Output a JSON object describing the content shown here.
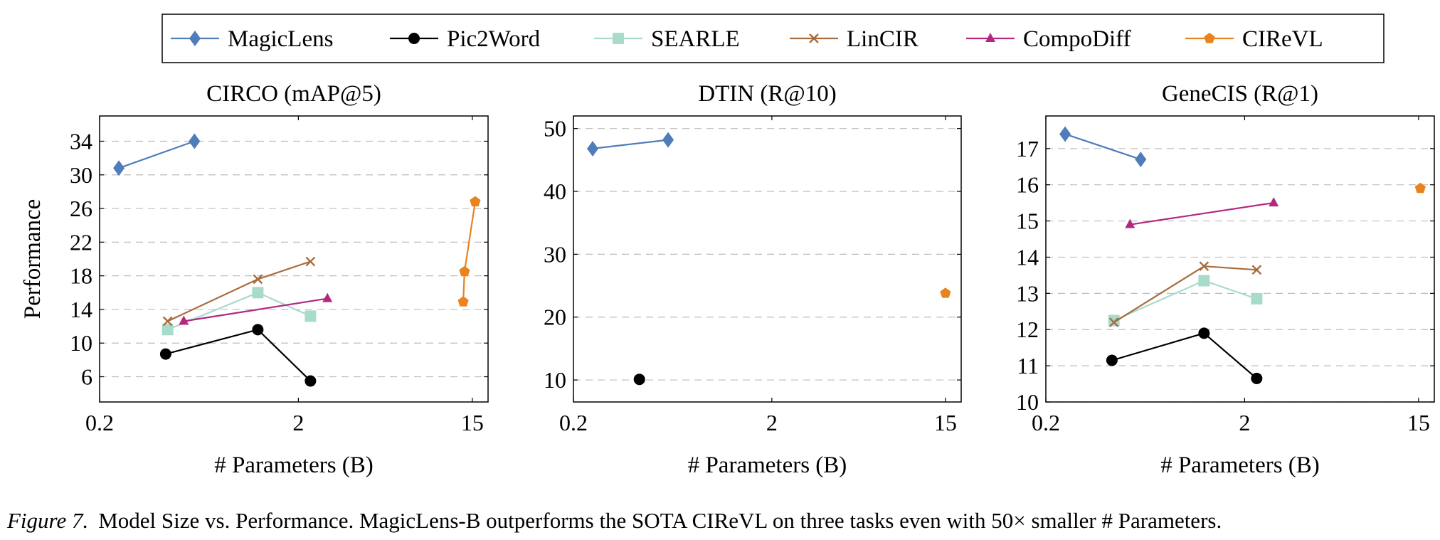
{
  "legend": [
    {
      "name": "MagicLens",
      "color": "#4f7cba",
      "marker": "diamond"
    },
    {
      "name": "Pic2Word",
      "color": "#000000",
      "marker": "circle"
    },
    {
      "name": "SEARLE",
      "color": "#a8dbcc",
      "marker": "square"
    },
    {
      "name": "LinCIR",
      "color": "#a86c3c",
      "marker": "cross"
    },
    {
      "name": "CompoDiff",
      "color": "#b3287f",
      "marker": "triangle"
    },
    {
      "name": "CIReVL",
      "color": "#e8831e",
      "marker": "pentagon"
    }
  ],
  "shared": {
    "ylabel": "Performance",
    "xlabel": "# Parameters (B)",
    "xscale": "log",
    "xticks": [
      0.2,
      2,
      15
    ],
    "xlim": [
      0.2,
      18
    ],
    "grid": "horizontal dashed"
  },
  "chart_data": [
    {
      "type": "line",
      "title": "CIRCO (mAP@5)",
      "xlabel": "# Parameters (B)",
      "ylabel": "Performance",
      "ylim": [
        3,
        37
      ],
      "yticks": [
        6,
        10,
        14,
        18,
        22,
        26,
        30,
        34
      ],
      "series": [
        {
          "name": "MagicLens",
          "x": [
            0.25,
            0.6
          ],
          "y": [
            30.8,
            34.0
          ]
        },
        {
          "name": "Pic2Word",
          "x": [
            0.43,
            1.25,
            2.3
          ],
          "y": [
            8.7,
            11.6,
            5.5
          ]
        },
        {
          "name": "SEARLE",
          "x": [
            0.44,
            1.25,
            2.3
          ],
          "y": [
            11.6,
            16.0,
            13.2
          ]
        },
        {
          "name": "LinCIR",
          "x": [
            0.44,
            1.25,
            2.3
          ],
          "y": [
            12.6,
            17.6,
            19.7
          ]
        },
        {
          "name": "CompoDiff",
          "x": [
            0.53,
            2.8
          ],
          "y": [
            12.6,
            15.3
          ]
        },
        {
          "name": "CIReVL",
          "x": [
            13.5,
            13.7,
            15.5
          ],
          "y": [
            14.9,
            18.5,
            26.8
          ]
        }
      ]
    },
    {
      "type": "line",
      "title": "DTIN (R@10)",
      "xlabel": "# Parameters (B)",
      "ylim": [
        6.5,
        52
      ],
      "yticks": [
        10,
        20,
        30,
        40,
        50
      ],
      "series": [
        {
          "name": "MagicLens",
          "x": [
            0.25,
            0.6
          ],
          "y": [
            46.8,
            48.2
          ]
        },
        {
          "name": "Pic2Word",
          "x": [
            0.43
          ],
          "y": [
            10.1
          ]
        },
        {
          "name": "CIReVL",
          "x": [
            15.0
          ],
          "y": [
            23.8
          ]
        }
      ]
    },
    {
      "type": "line",
      "title": "GeneCIS (R@1)",
      "xlabel": "# Parameters (B)",
      "ylim": [
        10,
        17.9
      ],
      "yticks": [
        10,
        11,
        12,
        13,
        14,
        15,
        16,
        17
      ],
      "series": [
        {
          "name": "MagicLens",
          "x": [
            0.25,
            0.6
          ],
          "y": [
            17.4,
            16.7
          ]
        },
        {
          "name": "Pic2Word",
          "x": [
            0.43,
            1.25,
            2.3
          ],
          "y": [
            11.15,
            11.9,
            10.65
          ]
        },
        {
          "name": "SEARLE",
          "x": [
            0.44,
            1.25,
            2.3
          ],
          "y": [
            12.25,
            13.35,
            12.85
          ]
        },
        {
          "name": "LinCIR",
          "x": [
            0.44,
            1.25,
            2.3
          ],
          "y": [
            12.2,
            13.75,
            13.65
          ]
        },
        {
          "name": "CompoDiff",
          "x": [
            0.53,
            2.8
          ],
          "y": [
            14.9,
            15.5
          ]
        },
        {
          "name": "CIReVL",
          "x": [
            15.3
          ],
          "y": [
            15.9
          ]
        }
      ]
    }
  ],
  "caption": {
    "label": "Figure 7.",
    "text": "Model Size vs. Performance. MagicLens-B outperforms the SOTA CIReVL on three tasks even with 50× smaller # Parameters."
  }
}
